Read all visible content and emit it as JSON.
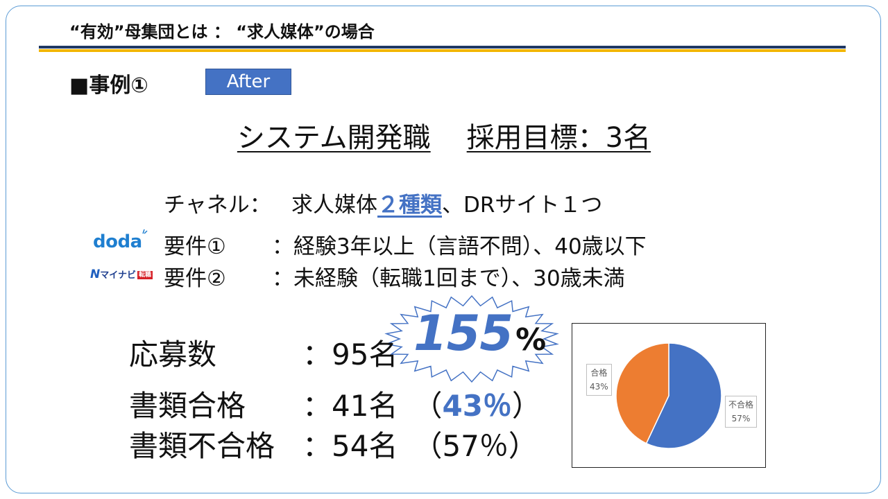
{
  "header": {
    "title": "“有効”母集団とは ： “求人媒体”の場合"
  },
  "case": {
    "label": "■事例①",
    "badge": "After"
  },
  "main": {
    "title_left": "システム開発職",
    "title_right": "採用目標：3名"
  },
  "channel": {
    "label": "チャネル：",
    "text_a": "求人媒体",
    "highlight": "２種類",
    "text_b": "、DRサイト１つ"
  },
  "requirements": [
    {
      "logo": "doda",
      "label": "要件①",
      "value": "：経験3年以上（言語不問）、40歳以下"
    },
    {
      "logo": "マイナビ転職",
      "label": "要件②",
      "value": "：未経験（転職1回まで）、30歳未満"
    }
  ],
  "logos": {
    "mynavi_mark": "N",
    "mynavi_text": "マイナビ",
    "mynavi_badge": "転職"
  },
  "stats": {
    "applicants": {
      "label": "応募数",
      "value": "：95名"
    },
    "pass": {
      "label": "書類合格",
      "value": "：41名",
      "paren_open": "（",
      "pct": "43％",
      "paren_close": "）"
    },
    "fail": {
      "label": "書類不合格",
      "value": "：54名",
      "rest": "（57％）"
    }
  },
  "burst": {
    "number": "155",
    "unit": "%"
  },
  "chart_data": {
    "type": "pie",
    "labels": [
      "不合格",
      "合格"
    ],
    "values": [
      57,
      43
    ],
    "percent_labels": [
      "57%",
      "43%"
    ],
    "colors": [
      "#4472c4",
      "#ed7d31"
    ]
  },
  "colors": {
    "accent": "#4472c4",
    "navy": "#1f3864",
    "gold": "#f2b600"
  }
}
